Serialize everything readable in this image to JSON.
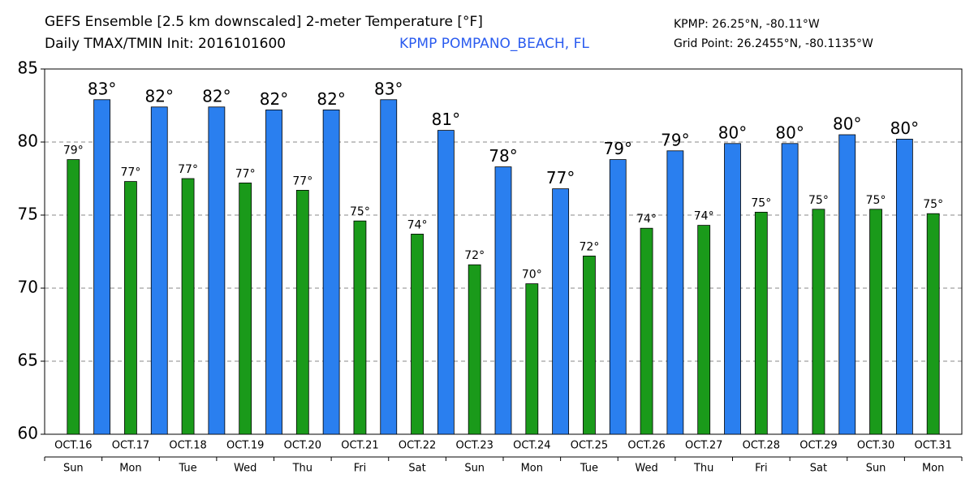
{
  "chart_data": {
    "type": "bar",
    "title": "GEFS Ensemble [2.5 km downscaled] 2-meter Temperature [°F]",
    "subtitle": "Daily TMAX/TMIN Init: 2016101600",
    "station": "KPMP POMPANO_BEACH, FL",
    "station_coords": "KPMP: 26.25°N, -80.11°W",
    "grid_point": "Grid Point: 26.2455°N, -80.1135°W",
    "categories": [
      "OCT.16",
      "OCT.17",
      "OCT.18",
      "OCT.19",
      "OCT.20",
      "OCT.21",
      "OCT.22",
      "OCT.23",
      "OCT.24",
      "OCT.25",
      "OCT.26",
      "OCT.27",
      "OCT.28",
      "OCT.29",
      "OCT.30",
      "OCT.31"
    ],
    "weekdays": [
      "Sun",
      "Mon",
      "Tue",
      "Wed",
      "Thu",
      "Fri",
      "Sat",
      "Sun",
      "Mon",
      "Tue",
      "Wed",
      "Thu",
      "Fri",
      "Sat",
      "Sun",
      "Mon"
    ],
    "series": [
      {
        "color": "#1a9a1a",
        "values": [
          78.8,
          77.3,
          77.5,
          77.2,
          76.7,
          74.6,
          73.7,
          71.6,
          70.3,
          72.2,
          74.1,
          74.3,
          75.2,
          75.4,
          75.4,
          75.1
        ],
        "value_labels": [
          "79°",
          "77°",
          "77°",
          "77°",
          "77°",
          "75°",
          "74°",
          "72°",
          "70°",
          "72°",
          "74°",
          "74°",
          "75°",
          "75°",
          "75°",
          "75°"
        ]
      },
      {
        "color": "#2a7fef",
        "values": [
          82.9,
          82.4,
          82.4,
          82.2,
          82.2,
          82.9,
          80.8,
          78.3,
          76.8,
          78.8,
          79.4,
          79.9,
          79.9,
          80.5,
          80.2,
          null
        ],
        "value_labels": [
          "83°",
          "82°",
          "82°",
          "82°",
          "82°",
          "83°",
          "81°",
          "78°",
          "77°",
          "79°",
          "79°",
          "80°",
          "80°",
          "80°",
          "80°",
          null
        ]
      }
    ],
    "ylim": [
      60,
      85
    ],
    "yticks": [
      60,
      65,
      70,
      75,
      80,
      85
    ],
    "grid": true
  }
}
